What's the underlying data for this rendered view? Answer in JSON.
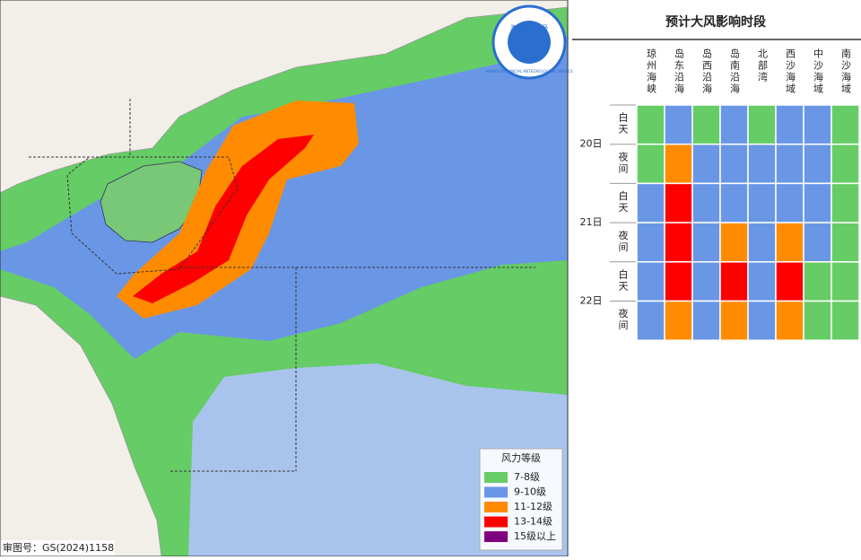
{
  "map": {
    "logo": {
      "name": "海南省气象局",
      "subtitle": "HAINAN PROVINCIAL METEOROLOGICAL SERVICE"
    },
    "credit": "审图号：GS(2024)1158",
    "legend": {
      "title": "风力等级",
      "items": [
        {
          "label": "7-8级",
          "color": "#66cc66"
        },
        {
          "label": "9-10级",
          "color": "#6a96e6"
        },
        {
          "label": "11-12级",
          "color": "#ff8c00"
        },
        {
          "label": "13-14级",
          "color": "#ff0000"
        },
        {
          "label": "15级以上",
          "color": "#800080"
        }
      ]
    }
  },
  "table": {
    "title": "预计大风影响时段",
    "columns": [
      "琼州海峡",
      "岛东沿海",
      "岛西沿海",
      "岛南沿海",
      "北部湾",
      "西沙海域",
      "中沙海域",
      "南沙海域"
    ],
    "days": [
      {
        "label": "20日",
        "periods": [
          {
            "label": "白天",
            "levels": [
              0,
              1,
              0,
              1,
              0,
              1,
              1,
              0
            ]
          },
          {
            "label": "夜间",
            "levels": [
              0,
              2,
              1,
              1,
              1,
              1,
              1,
              0
            ]
          }
        ]
      },
      {
        "label": "21日",
        "periods": [
          {
            "label": "白天",
            "levels": [
              1,
              3,
              1,
              1,
              1,
              1,
              1,
              0
            ]
          },
          {
            "label": "夜间",
            "levels": [
              1,
              3,
              1,
              2,
              1,
              2,
              1,
              0
            ]
          }
        ]
      },
      {
        "label": "22日",
        "periods": [
          {
            "label": "白天",
            "levels": [
              1,
              3,
              1,
              3,
              1,
              3,
              0,
              0
            ]
          },
          {
            "label": "夜间",
            "levels": [
              1,
              2,
              1,
              2,
              1,
              2,
              0,
              0
            ]
          }
        ]
      }
    ]
  }
}
